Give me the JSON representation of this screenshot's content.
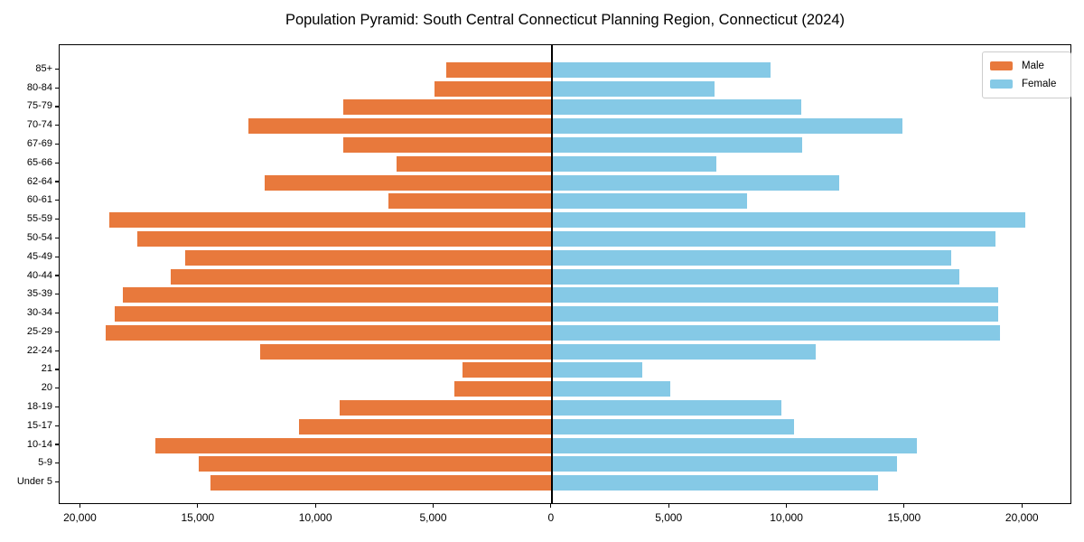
{
  "title": "Population Pyramid: South Central Connecticut Planning Region, Connecticut (2024)",
  "legend": {
    "male_label": "Male",
    "female_label": "Female"
  },
  "colors": {
    "male": "#e8793c",
    "female": "#85c9e6",
    "axis": "#000000",
    "legend_border": "#cccccc",
    "background": "#ffffff"
  },
  "chart_data": {
    "type": "bar",
    "subtype": "population-pyramid",
    "orientation": "horizontal",
    "title": "Population Pyramid: South Central Connecticut Planning Region, Connecticut (2024)",
    "categories": [
      "85+",
      "80-84",
      "75-79",
      "70-74",
      "67-69",
      "65-66",
      "62-64",
      "60-61",
      "55-59",
      "50-54",
      "45-49",
      "40-44",
      "35-39",
      "30-34",
      "25-29",
      "22-24",
      "21",
      "20",
      "18-19",
      "15-17",
      "10-14",
      "5-9",
      "Under 5"
    ],
    "series": [
      {
        "name": "Male",
        "side": "left",
        "color": "#e8793c",
        "values": [
          4500,
          5000,
          8850,
          12900,
          8850,
          6600,
          12200,
          6950,
          18800,
          17600,
          15550,
          16200,
          18200,
          18550,
          18950,
          12400,
          3800,
          4150,
          9000,
          10750,
          16850,
          15000,
          14500
        ]
      },
      {
        "name": "Female",
        "side": "right",
        "color": "#85c9e6",
        "values": [
          9300,
          6900,
          10600,
          14900,
          10650,
          7000,
          12200,
          8300,
          20100,
          18850,
          16950,
          17300,
          18950,
          18950,
          19050,
          11200,
          3850,
          5050,
          9750,
          10300,
          15500,
          14650,
          13850
        ]
      }
    ],
    "x_tick_values": [
      -20000,
      -15000,
      -10000,
      -5000,
      0,
      5000,
      10000,
      15000,
      20000
    ],
    "x_tick_labels": [
      "20,000",
      "15,000",
      "10,000",
      "5,000",
      "0",
      "5,000",
      "10,000",
      "15,000",
      "20,000"
    ],
    "xlim": [
      -20900,
      22100
    ],
    "grid": false,
    "legend_position": "upper right"
  }
}
